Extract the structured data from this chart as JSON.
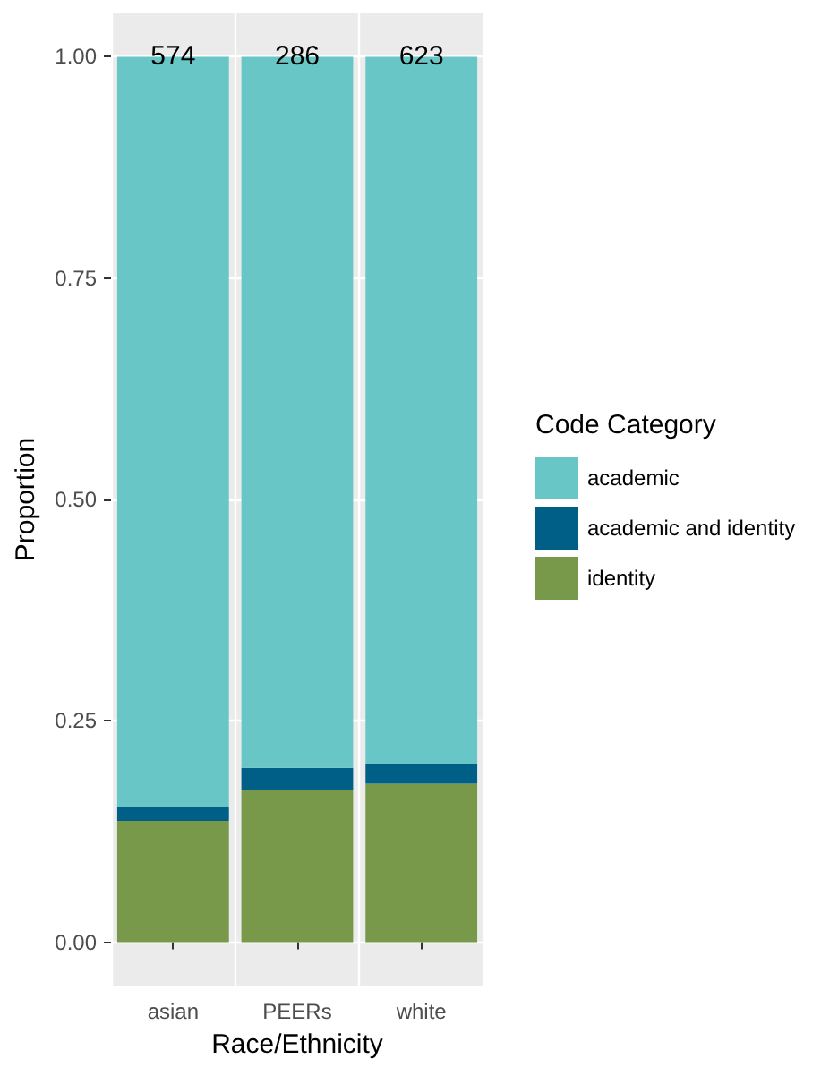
{
  "chart_data": {
    "type": "bar",
    "xlabel": "Race/Ethnicity",
    "ylabel": "Proportion",
    "legend_title": "Code Category",
    "categories": [
      "asian",
      "PEERs",
      "white"
    ],
    "stacked": true,
    "series": [
      {
        "name": "identity",
        "color": "#78994a",
        "values": [
          0.137,
          0.172,
          0.179
        ]
      },
      {
        "name": "academic and identity",
        "color": "#005f87",
        "values": [
          0.016,
          0.025,
          0.022
        ]
      },
      {
        "name": "academic",
        "color": "#68c7c6",
        "values": [
          0.847,
          0.803,
          0.799
        ]
      }
    ],
    "annotations": [
      {
        "text": "574",
        "x": "asian",
        "y": 1
      },
      {
        "text": "286",
        "x": "PEERs",
        "y": 1
      },
      {
        "text": "623",
        "x": "white",
        "y": 1
      }
    ],
    "ylim": [
      -0.05,
      1.05
    ],
    "yticks": [
      {
        "value": 0,
        "label": "0.00"
      },
      {
        "value": 0.25,
        "label": "0.25"
      },
      {
        "value": 0.5,
        "label": "0.50"
      },
      {
        "value": 0.75,
        "label": "0.75"
      },
      {
        "value": 1,
        "label": "1.00"
      }
    ],
    "grid": true,
    "legend": "right"
  }
}
